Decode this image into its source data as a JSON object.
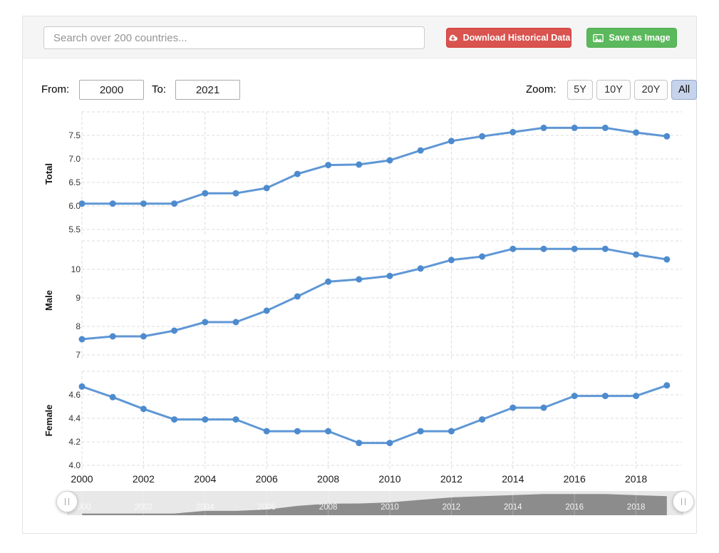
{
  "header": {
    "search_placeholder": "Search over 200 countries...",
    "download_button": "Download Historical Data",
    "save_button": "Save as Image"
  },
  "controls": {
    "from_label": "From:",
    "from_value": "2000",
    "to_label": "To:",
    "to_value": "2021",
    "zoom_label": "Zoom:",
    "zoom_buttons": [
      "5Y",
      "10Y",
      "20Y",
      "All"
    ],
    "zoom_selected": "All"
  },
  "colors": {
    "line": "#5f97d5",
    "marker": "#4d8bce",
    "download_red": "#d9534f",
    "save_green": "#5cb85c",
    "zoom_selected_bg": "#c6d3ea",
    "navigator_area": "#8c8c8c",
    "navigator_track": "#e8e8e8",
    "grid": "#dcdcdc"
  },
  "x_axis_labels": [
    "2000",
    "2002",
    "2004",
    "2006",
    "2008",
    "2010",
    "2012",
    "2014",
    "2016",
    "2018"
  ],
  "chart_data": [
    {
      "type": "line",
      "name": "Total",
      "x": [
        2000,
        2001,
        2002,
        2003,
        2004,
        2005,
        2006,
        2007,
        2008,
        2009,
        2010,
        2011,
        2012,
        2013,
        2014,
        2015,
        2016,
        2017,
        2018,
        2019
      ],
      "values": [
        6.05,
        6.05,
        6.05,
        6.05,
        6.27,
        6.27,
        6.38,
        6.68,
        6.87,
        6.88,
        6.97,
        7.18,
        7.38,
        7.48,
        7.57,
        7.66,
        7.66,
        7.66,
        7.56,
        7.48
      ],
      "y_ticks": [
        {
          "v": 8.0,
          "label": ""
        },
        {
          "v": 7.5,
          "label": "7.5"
        },
        {
          "v": 7.0,
          "label": "7.0"
        },
        {
          "v": 6.5,
          "label": "6.5"
        },
        {
          "v": 6.0,
          "label": "6.0"
        },
        {
          "v": 5.5,
          "label": "5.5"
        }
      ],
      "ylim": [
        5.3,
        8.0
      ],
      "grid": "dashed",
      "legend": "none"
    },
    {
      "type": "line",
      "name": "Male",
      "x": [
        2000,
        2001,
        2002,
        2003,
        2004,
        2005,
        2006,
        2007,
        2008,
        2009,
        2010,
        2011,
        2012,
        2013,
        2014,
        2015,
        2016,
        2017,
        2018,
        2019
      ],
      "values": [
        7.55,
        7.65,
        7.65,
        7.85,
        8.15,
        8.15,
        8.55,
        9.05,
        9.57,
        9.65,
        9.77,
        10.03,
        10.33,
        10.45,
        10.72,
        10.72,
        10.72,
        10.72,
        10.52,
        10.35
      ],
      "y_ticks": [
        {
          "v": 11,
          "label": ""
        },
        {
          "v": 10,
          "label": "10"
        },
        {
          "v": 9,
          "label": "9"
        },
        {
          "v": 8,
          "label": "8"
        },
        {
          "v": 7,
          "label": "7"
        }
      ],
      "ylim": [
        6.75,
        11.0
      ],
      "grid": "dashed",
      "legend": "none"
    },
    {
      "type": "line",
      "name": "Female",
      "x": [
        2000,
        2001,
        2002,
        2003,
        2004,
        2005,
        2006,
        2007,
        2008,
        2009,
        2010,
        2011,
        2012,
        2013,
        2014,
        2015,
        2016,
        2017,
        2018,
        2019
      ],
      "values": [
        4.67,
        4.58,
        4.48,
        4.39,
        4.39,
        4.39,
        4.29,
        4.29,
        4.29,
        4.19,
        4.19,
        4.29,
        4.29,
        4.39,
        4.49,
        4.49,
        4.59,
        4.59,
        4.59,
        4.68
      ],
      "y_ticks": [
        {
          "v": 4.8,
          "label": ""
        },
        {
          "v": 4.6,
          "label": "4.6"
        },
        {
          "v": 4.4,
          "label": "4.4"
        },
        {
          "v": 4.2,
          "label": "4.2"
        },
        {
          "v": 4.0,
          "label": "4.0"
        }
      ],
      "ylim": [
        3.95,
        4.8
      ],
      "grid": "dashed",
      "legend": "none"
    },
    {
      "type": "area",
      "name": "navigator",
      "x": [
        2000,
        2001,
        2002,
        2003,
        2004,
        2005,
        2006,
        2007,
        2008,
        2009,
        2010,
        2011,
        2012,
        2013,
        2014,
        2015,
        2016,
        2017,
        2018,
        2019
      ],
      "values": [
        6.05,
        6.05,
        6.05,
        6.05,
        6.27,
        6.27,
        6.38,
        6.68,
        6.87,
        6.88,
        6.97,
        7.18,
        7.38,
        7.48,
        7.57,
        7.66,
        7.66,
        7.66,
        7.56,
        7.48
      ],
      "x_labels": [
        "2000",
        "2002",
        "2004",
        "2006",
        "2008",
        "2010",
        "2012",
        "2014",
        "2016",
        "2018"
      ],
      "ylim": [
        6.0,
        7.7
      ]
    }
  ]
}
